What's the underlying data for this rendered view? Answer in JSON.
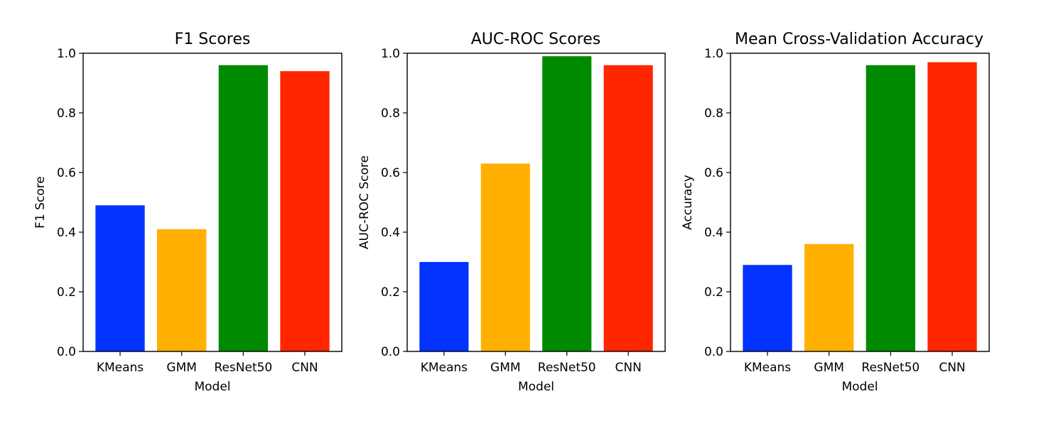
{
  "colors": {
    "KMeans": "#0433ff",
    "GMM": "#ffb000",
    "ResNet50": "#008a00",
    "CNN": "#ff2600"
  },
  "chart_data": [
    {
      "type": "bar",
      "title": "F1 Scores",
      "xlabel": "Model",
      "ylabel": "F1 Score",
      "categories": [
        "KMeans",
        "GMM",
        "ResNet50",
        "CNN"
      ],
      "values": [
        0.49,
        0.41,
        0.96,
        0.94
      ],
      "ylim": [
        0,
        1.0
      ],
      "yticks": [
        "0.0",
        "0.2",
        "0.4",
        "0.6",
        "0.8",
        "1.0"
      ],
      "grid": false
    },
    {
      "type": "bar",
      "title": "AUC-ROC Scores",
      "xlabel": "Model",
      "ylabel": "AUC-ROC Score",
      "categories": [
        "KMeans",
        "GMM",
        "ResNet50",
        "CNN"
      ],
      "values": [
        0.3,
        0.63,
        0.99,
        0.96
      ],
      "ylim": [
        0,
        1.0
      ],
      "yticks": [
        "0.0",
        "0.2",
        "0.4",
        "0.6",
        "0.8",
        "1.0"
      ],
      "grid": false
    },
    {
      "type": "bar",
      "title": "Mean Cross-Validation Accuracy",
      "xlabel": "Model",
      "ylabel": "Accuracy",
      "categories": [
        "KMeans",
        "GMM",
        "ResNet50",
        "CNN"
      ],
      "values": [
        0.29,
        0.36,
        0.96,
        0.97
      ],
      "ylim": [
        0,
        1.0
      ],
      "yticks": [
        "0.0",
        "0.2",
        "0.4",
        "0.6",
        "0.8",
        "1.0"
      ],
      "grid": false
    }
  ]
}
